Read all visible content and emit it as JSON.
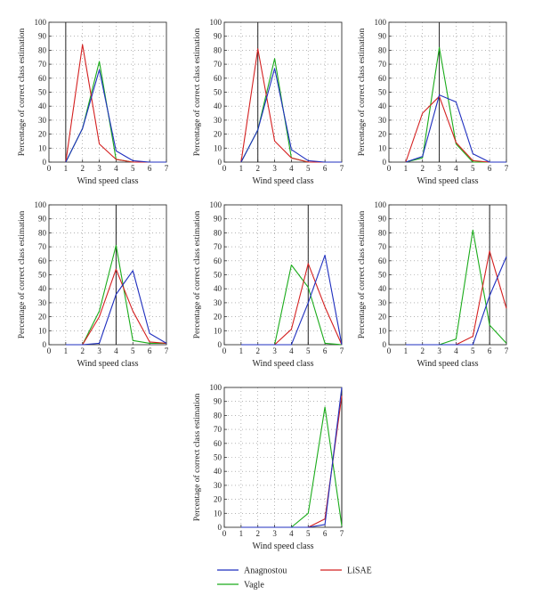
{
  "legend": [
    {
      "label": "Anagnostou",
      "color": "#1f2fbf"
    },
    {
      "label": "LiSAE",
      "color": "#d42020"
    },
    {
      "label": "Vagle",
      "color": "#1aab1a"
    }
  ],
  "chart_data": [
    {
      "type": "line",
      "xlabel": "Wind speed class",
      "ylabel": "Percentage of correct class estimation",
      "xlim": [
        0,
        7
      ],
      "ylim": [
        0,
        100
      ],
      "grid": "dotted",
      "x_ticks": [
        0,
        1,
        2,
        3,
        4,
        5,
        6,
        7
      ],
      "y_ticks": [
        0,
        10,
        20,
        30,
        40,
        50,
        60,
        70,
        80,
        90,
        100
      ],
      "true_class": 1,
      "x": [
        1,
        2,
        3,
        4,
        5,
        6,
        7
      ],
      "series": [
        {
          "name": "Anagnostou",
          "color": "#1f2fbf",
          "values": [
            0,
            24,
            66,
            8,
            1,
            0,
            0
          ]
        },
        {
          "name": "LiSAE",
          "color": "#d42020",
          "values": [
            0,
            84,
            13,
            2,
            0,
            0,
            0
          ]
        },
        {
          "name": "Vagle",
          "color": "#1aab1a",
          "values": [
            0,
            24,
            72,
            2,
            0,
            0,
            0
          ]
        }
      ]
    },
    {
      "type": "line",
      "xlabel": "Wind speed class",
      "ylabel": "Percentage of correct class estimation",
      "xlim": [
        0,
        7
      ],
      "ylim": [
        0,
        100
      ],
      "grid": "dotted",
      "x_ticks": [
        0,
        1,
        2,
        3,
        4,
        5,
        6,
        7
      ],
      "y_ticks": [
        0,
        10,
        20,
        30,
        40,
        50,
        60,
        70,
        80,
        90,
        100
      ],
      "true_class": 2,
      "x": [
        1,
        2,
        3,
        4,
        5,
        6,
        7
      ],
      "series": [
        {
          "name": "Anagnostou",
          "color": "#1f2fbf",
          "values": [
            0,
            23,
            67,
            9,
            1,
            0,
            0
          ]
        },
        {
          "name": "LiSAE",
          "color": "#d42020",
          "values": [
            0,
            81,
            15,
            3,
            0,
            0,
            0
          ]
        },
        {
          "name": "Vagle",
          "color": "#1aab1a",
          "values": [
            0,
            23,
            74,
            3,
            0,
            0,
            0
          ]
        }
      ]
    },
    {
      "type": "line",
      "xlabel": "Wind speed class",
      "ylabel": "Percentage of correct class estimation",
      "xlim": [
        0,
        7
      ],
      "ylim": [
        0,
        100
      ],
      "grid": "dotted",
      "x_ticks": [
        0,
        1,
        2,
        3,
        4,
        5,
        6,
        7
      ],
      "y_ticks": [
        0,
        10,
        20,
        30,
        40,
        50,
        60,
        70,
        80,
        90,
        100
      ],
      "true_class": 3,
      "x": [
        1,
        2,
        3,
        4,
        5,
        6,
        7
      ],
      "series": [
        {
          "name": "Anagnostou",
          "color": "#1f2fbf",
          "values": [
            0,
            4,
            48,
            43,
            6,
            0,
            0
          ]
        },
        {
          "name": "LiSAE",
          "color": "#d42020",
          "values": [
            0,
            35,
            47,
            14,
            1,
            0,
            0
          ]
        },
        {
          "name": "Vagle",
          "color": "#1aab1a",
          "values": [
            0,
            3,
            82,
            13,
            0,
            0,
            0
          ]
        }
      ]
    },
    {
      "type": "line",
      "xlabel": "Wind speed class",
      "ylabel": "Percentage of correct class estimation",
      "xlim": [
        0,
        7
      ],
      "ylim": [
        0,
        100
      ],
      "grid": "dotted",
      "x_ticks": [
        0,
        1,
        2,
        3,
        4,
        5,
        6,
        7
      ],
      "y_ticks": [
        0,
        10,
        20,
        30,
        40,
        50,
        60,
        70,
        80,
        90,
        100
      ],
      "true_class": 4,
      "x": [
        1,
        2,
        3,
        4,
        5,
        6,
        7
      ],
      "series": [
        {
          "name": "Anagnostou",
          "color": "#1f2fbf",
          "values": [
            0,
            0,
            1,
            36,
            53,
            8,
            1
          ]
        },
        {
          "name": "LiSAE",
          "color": "#d42020",
          "values": [
            0,
            0,
            20,
            54,
            24,
            2,
            1
          ]
        },
        {
          "name": "Vagle",
          "color": "#1aab1a",
          "values": [
            0,
            0,
            24,
            71,
            3,
            1,
            1
          ]
        }
      ]
    },
    {
      "type": "line",
      "xlabel": "Wind speed class",
      "ylabel": "Percentage of correct class estimation",
      "xlim": [
        0,
        7
      ],
      "ylim": [
        0,
        100
      ],
      "grid": "dotted",
      "x_ticks": [
        0,
        1,
        2,
        3,
        4,
        5,
        6,
        7
      ],
      "y_ticks": [
        0,
        10,
        20,
        30,
        40,
        50,
        60,
        70,
        80,
        90,
        100
      ],
      "true_class": 5,
      "x": [
        1,
        2,
        3,
        4,
        5,
        6,
        7
      ],
      "series": [
        {
          "name": "Anagnostou",
          "color": "#1f2fbf",
          "values": [
            0,
            0,
            0,
            0,
            30,
            64,
            0
          ]
        },
        {
          "name": "LiSAE",
          "color": "#d42020",
          "values": [
            0,
            0,
            0,
            11,
            58,
            27,
            0
          ]
        },
        {
          "name": "Vagle",
          "color": "#1aab1a",
          "values": [
            0,
            0,
            0,
            57,
            41,
            1,
            0
          ]
        }
      ]
    },
    {
      "type": "line",
      "xlabel": "Wind speed class",
      "ylabel": "Percentage of correct class estimation",
      "xlim": [
        0,
        7
      ],
      "ylim": [
        0,
        100
      ],
      "grid": "dotted",
      "x_ticks": [
        0,
        1,
        2,
        3,
        4,
        5,
        6,
        7
      ],
      "y_ticks": [
        0,
        10,
        20,
        30,
        40,
        50,
        60,
        70,
        80,
        90,
        100
      ],
      "true_class": 6,
      "x": [
        1,
        2,
        3,
        4,
        5,
        6,
        7
      ],
      "series": [
        {
          "name": "Anagnostou",
          "color": "#1f2fbf",
          "values": [
            0,
            0,
            0,
            0,
            0,
            35,
            63
          ]
        },
        {
          "name": "LiSAE",
          "color": "#d42020",
          "values": [
            0,
            0,
            0,
            0,
            6,
            67,
            26
          ]
        },
        {
          "name": "Vagle",
          "color": "#1aab1a",
          "values": [
            0,
            0,
            0,
            4,
            82,
            14,
            1
          ]
        }
      ]
    },
    {
      "type": "line",
      "xlabel": "Wind speed class",
      "ylabel": "Percentage of correct class estimation",
      "xlim": [
        0,
        7
      ],
      "ylim": [
        0,
        100
      ],
      "grid": "dotted",
      "x_ticks": [
        0,
        1,
        2,
        3,
        4,
        5,
        6,
        7
      ],
      "y_ticks": [
        0,
        10,
        20,
        30,
        40,
        50,
        60,
        70,
        80,
        90,
        100
      ],
      "true_class": 7,
      "x": [
        1,
        2,
        3,
        4,
        5,
        6,
        7
      ],
      "series": [
        {
          "name": "Anagnostou",
          "color": "#1f2fbf",
          "values": [
            0,
            0,
            0,
            0,
            0,
            2,
            100
          ]
        },
        {
          "name": "LiSAE",
          "color": "#d42020",
          "values": [
            0,
            0,
            0,
            0,
            0,
            6,
            94
          ]
        },
        {
          "name": "Vagle",
          "color": "#1aab1a",
          "values": [
            0,
            0,
            0,
            0,
            10,
            86,
            1
          ]
        }
      ]
    }
  ]
}
